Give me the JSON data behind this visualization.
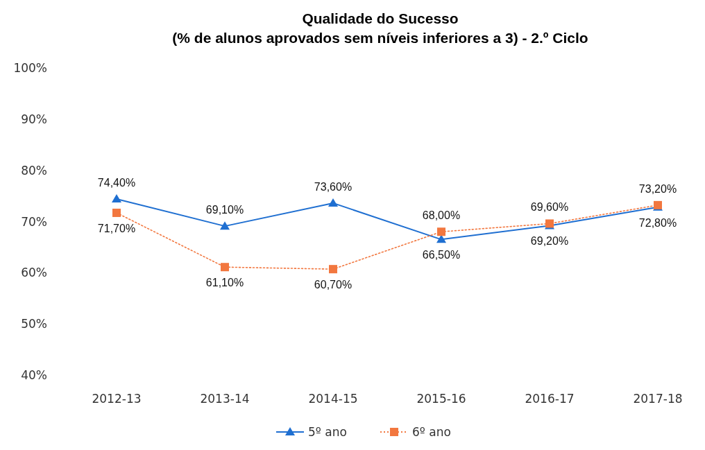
{
  "chart_data": {
    "type": "line",
    "title": "Qualidade do Sucesso",
    "subtitle": "(% de alunos aprovados sem níveis inferiores a 3) - 2.º Ciclo",
    "categories": [
      "2012-13",
      "2013-14",
      "2014-15",
      "2015-16",
      "2016-17",
      "2017-18"
    ],
    "series": [
      {
        "name": "5º ano",
        "color": "#1f6fd1",
        "marker": "triangle",
        "line_style": "solid",
        "values": [
          74.4,
          69.1,
          73.6,
          66.5,
          69.2,
          72.8
        ],
        "value_labels": [
          "74,40%",
          "69,10%",
          "73,60%",
          "66,50%",
          "69,20%",
          "72,80%"
        ]
      },
      {
        "name": "6º ano",
        "color": "#f2773f",
        "marker": "square",
        "line_style": "dotted",
        "values": [
          71.7,
          61.1,
          60.7,
          68.0,
          69.6,
          73.2
        ],
        "value_labels": [
          "71,70%",
          "61,10%",
          "60,70%",
          "68,00%",
          "69,60%",
          "73,20%"
        ]
      }
    ],
    "ylim": [
      40,
      100
    ],
    "yticks": [
      {
        "value": 40,
        "label": "40%"
      },
      {
        "value": 50,
        "label": "50%"
      },
      {
        "value": 60,
        "label": "60%"
      },
      {
        "value": 70,
        "label": "70%"
      },
      {
        "value": 80,
        "label": "80%"
      },
      {
        "value": 90,
        "label": "90%"
      },
      {
        "value": 100,
        "label": "100%"
      }
    ],
    "grid": false,
    "legend": "bottom"
  }
}
